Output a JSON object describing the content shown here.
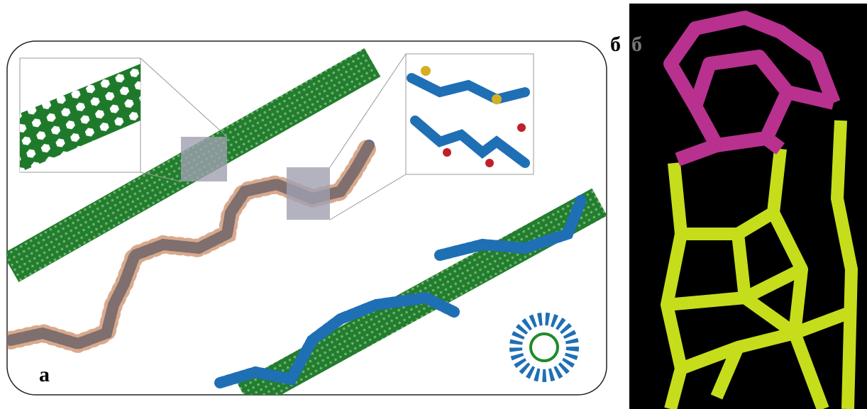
{
  "panel_a": {
    "label": "а"
  },
  "panel_b": {
    "label": "б",
    "label_overlay": "б"
  }
}
